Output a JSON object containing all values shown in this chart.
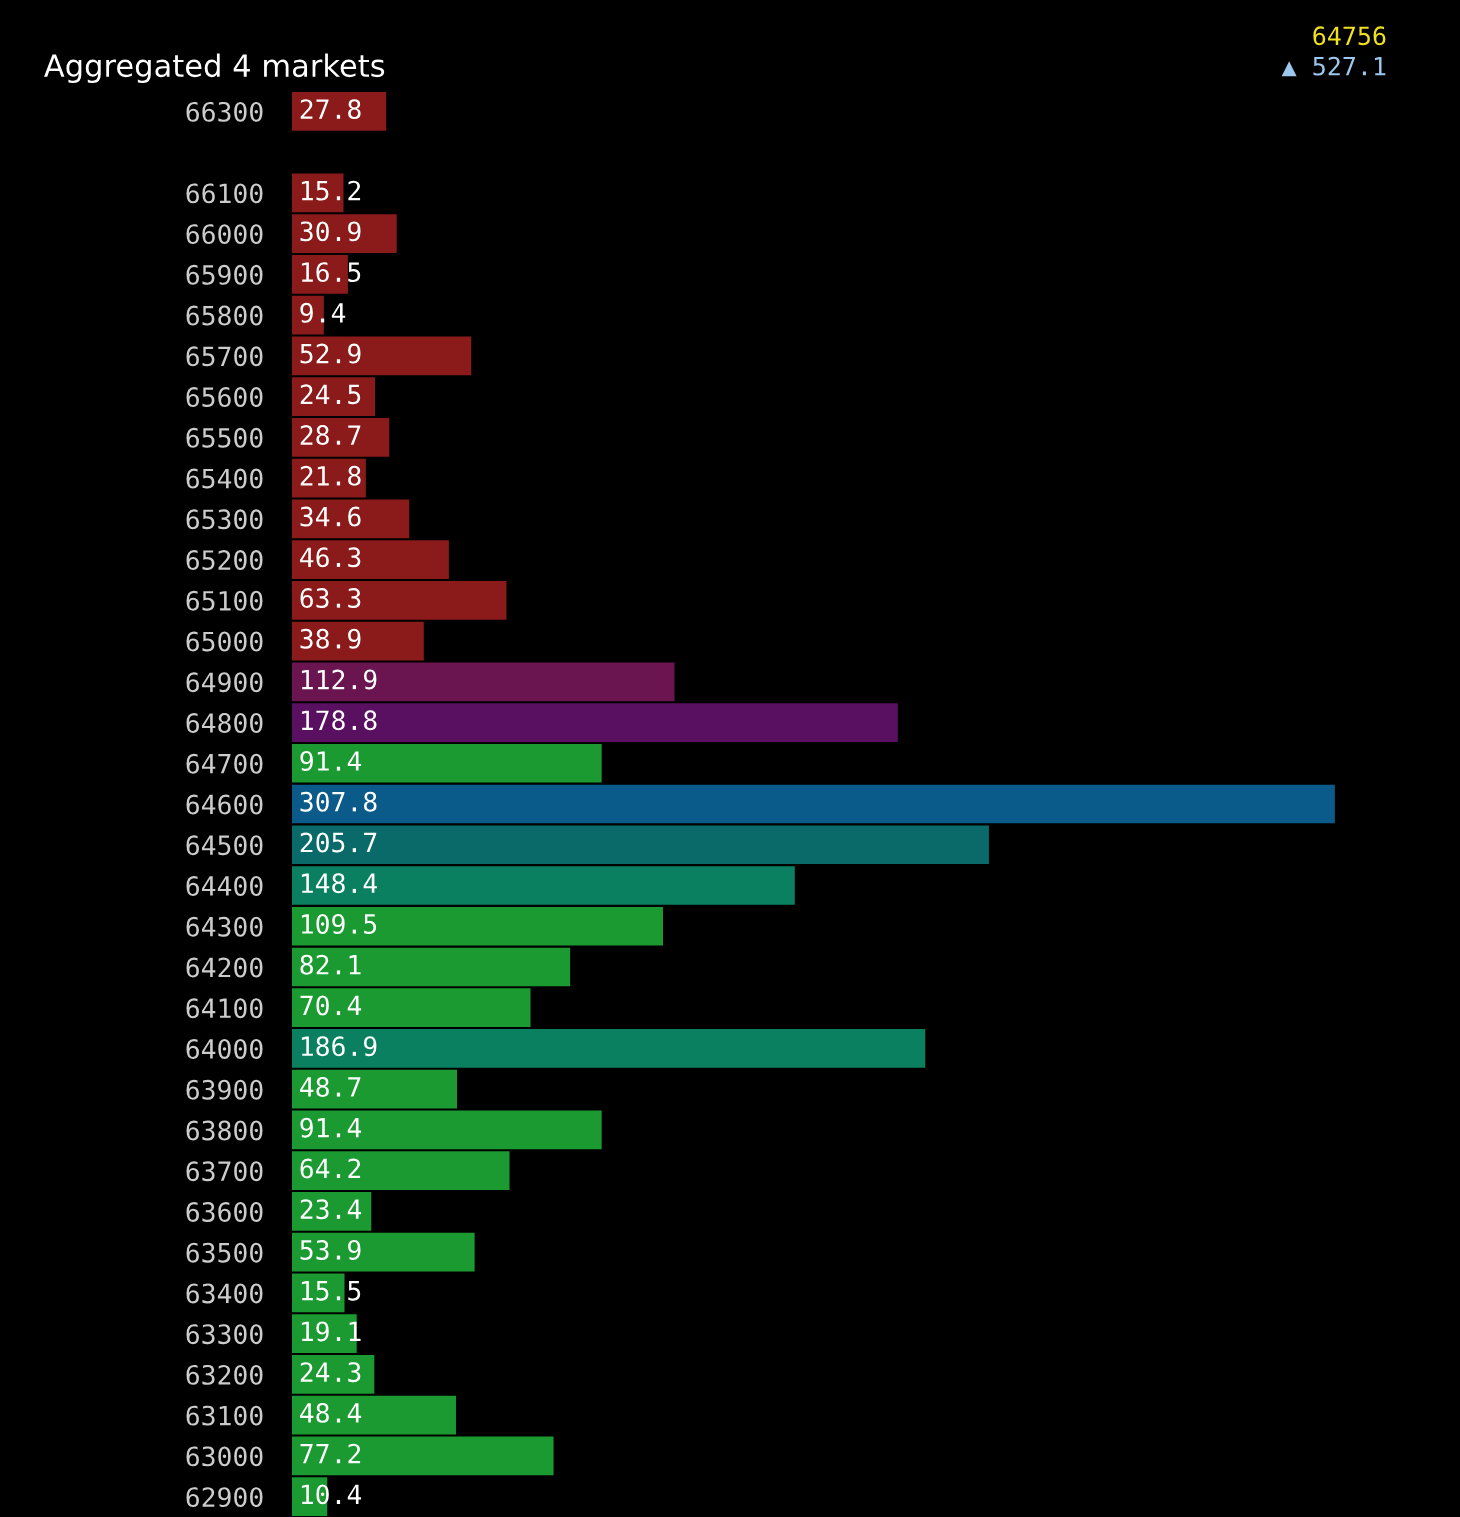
{
  "chart_data": {
    "type": "bar",
    "orientation": "horizontal",
    "title": "Aggregated 4 markets",
    "categories": [
      "66300",
      null,
      "66100",
      "66000",
      "65900",
      "65800",
      "65700",
      "65600",
      "65500",
      "65400",
      "65300",
      "65200",
      "65100",
      "65000",
      "64900",
      "64800",
      "64700",
      "64600",
      "64500",
      "64400",
      "64300",
      "64200",
      "64100",
      "64000",
      "63900",
      "63800",
      "63700",
      "63600",
      "63500",
      "63400",
      "63300",
      "63200",
      "63100",
      "63000",
      "62900"
    ],
    "values": [
      27.8,
      null,
      15.2,
      30.9,
      16.5,
      9.4,
      52.9,
      24.5,
      28.7,
      21.8,
      34.6,
      46.3,
      63.3,
      38.9,
      112.9,
      178.8,
      91.4,
      307.8,
      205.7,
      148.4,
      109.5,
      82.1,
      70.4,
      186.9,
      48.7,
      91.4,
      64.2,
      23.4,
      53.9,
      15.5,
      19.1,
      24.3,
      48.4,
      77.2,
      10.4
    ],
    "colors": [
      "#8b1a1a",
      "#8b1a1a",
      "#8b1a1a",
      "#8b1a1a",
      "#8b1a1a",
      "#8b1a1a",
      "#8b1a1a",
      "#8b1a1a",
      "#8b1a1a",
      "#8b1a1a",
      "#8b1a1a",
      "#8b1a1a",
      "#8b1a1a",
      "#8b1a1a",
      "#6a1450",
      "#5a1060",
      "#1a9a30",
      "#0a5a8a",
      "#0a6a6a",
      "#0a8060",
      "#1a9a30",
      "#1a9a30",
      "#1a9a30",
      "#0a8060",
      "#1a9a30",
      "#1a9a30",
      "#1a9a30",
      "#1a9a30",
      "#1a9a30",
      "#1a9a30",
      "#1a9a30",
      "#1a9a30",
      "#1a9a30",
      "#1a9a30",
      "#1a9a30"
    ],
    "data_labels": true,
    "annotations": [
      "64756",
      "▲ 527.1"
    ]
  }
}
